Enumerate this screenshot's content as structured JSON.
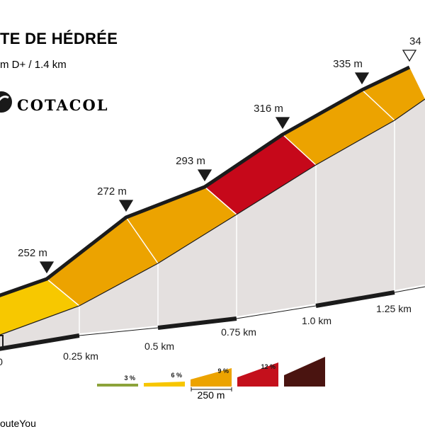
{
  "header": {
    "title": "TE DE HÉDRÉE",
    "subtitle": "m D+ / 1.4 km",
    "logo_text": "COTACOL"
  },
  "chart_data": {
    "type": "area",
    "x_unit": "km",
    "x": [
      0.0,
      0.25,
      0.5,
      0.75,
      1.0,
      1.25,
      1.4
    ],
    "y": [
      null,
      252,
      272,
      293,
      316,
      335,
      null
    ],
    "elevation_labels": [
      {
        "x": 0.25,
        "label": "252 m"
      },
      {
        "x": 0.5,
        "label": "272 m"
      },
      {
        "x": 0.75,
        "label": "293 m"
      },
      {
        "x": 1.0,
        "label": "316 m"
      },
      {
        "x": 1.25,
        "label": "335 m"
      },
      {
        "x": 1.4,
        "label": "34"
      }
    ],
    "segments": [
      {
        "from": 0.0,
        "to": 0.25,
        "category": "6"
      },
      {
        "from": 0.25,
        "to": 0.5,
        "category": "9"
      },
      {
        "from": 0.5,
        "to": 0.75,
        "category": "9"
      },
      {
        "from": 0.75,
        "to": 1.0,
        "category": "12"
      },
      {
        "from": 1.0,
        "to": 1.25,
        "category": "9"
      },
      {
        "from": 1.25,
        "to": 1.4,
        "category": "9"
      }
    ],
    "x_tick_labels": [
      "0",
      "0.25 km",
      "0.5 km",
      "0.75 km",
      "1.0 km",
      "1.25 km"
    ],
    "legend": [
      {
        "label": "3 %",
        "color": "#8ca33a"
      },
      {
        "label": "6 %",
        "color": "#f7c600"
      },
      {
        "label": "9 %",
        "color": "#eca300"
      },
      {
        "label": "12 %",
        "color": "#c4101c"
      },
      {
        "label": "",
        "color": "#4a1410"
      }
    ],
    "scale_label": "250 m",
    "colors": {
      "6": "#f7c800",
      "9": "#eca300",
      "12": "#c6081a",
      "side": "#e4e0df",
      "dark": "#1b1b1b"
    }
  },
  "footer": {
    "credit": "outeYou"
  }
}
